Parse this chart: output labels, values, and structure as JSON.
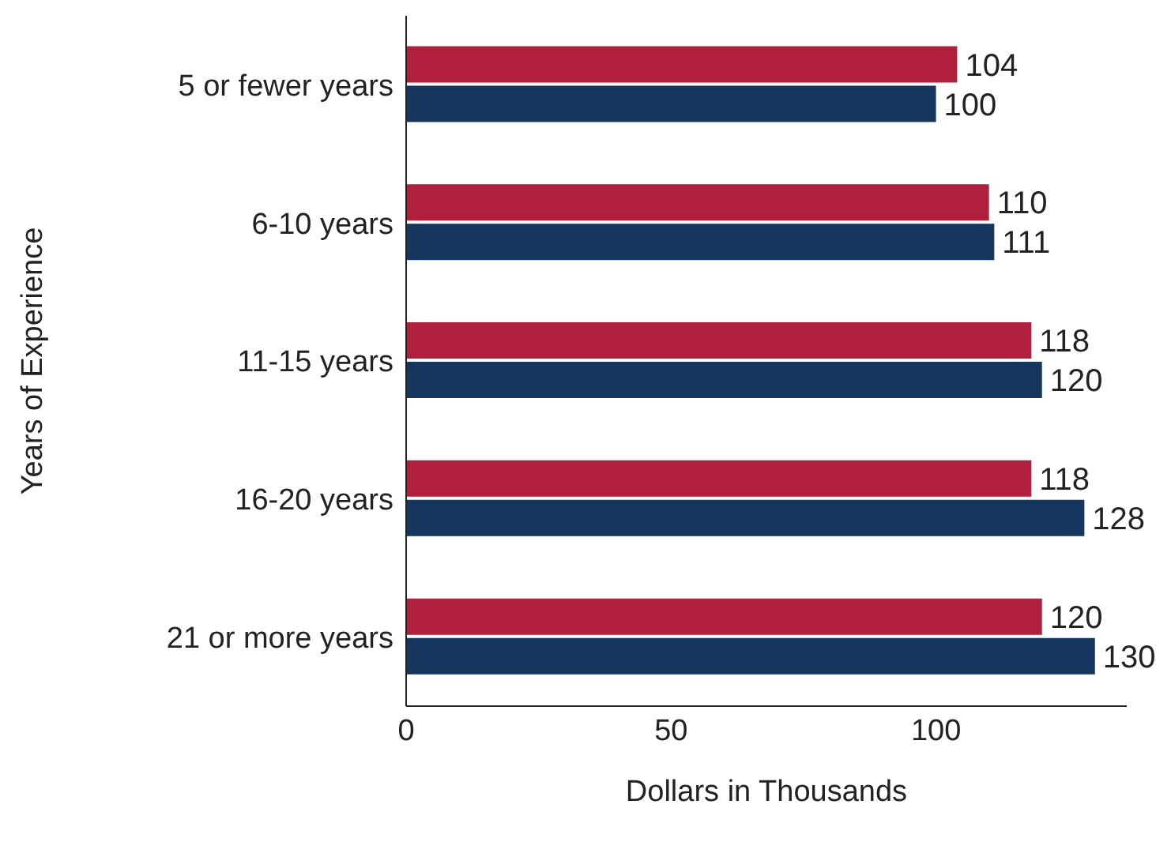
{
  "chart_data": {
    "type": "bar",
    "orientation": "horizontal",
    "xlabel": "Dollars in Thousands",
    "ylabel": "Years of Experience",
    "categories": [
      "5 or fewer years",
      "6-10 years",
      "11-15 years",
      "16-20 years",
      "21 or more years"
    ],
    "series": [
      {
        "color": "#b01f3c",
        "values": [
          104,
          110,
          118,
          118,
          120
        ]
      },
      {
        "color": "#15365f",
        "values": [
          100,
          111,
          120,
          128,
          130
        ]
      }
    ],
    "xlim": [
      0,
      136
    ],
    "xticks": [
      0,
      50,
      100
    ],
    "grid": false,
    "legend": false,
    "data_labels": true
  }
}
